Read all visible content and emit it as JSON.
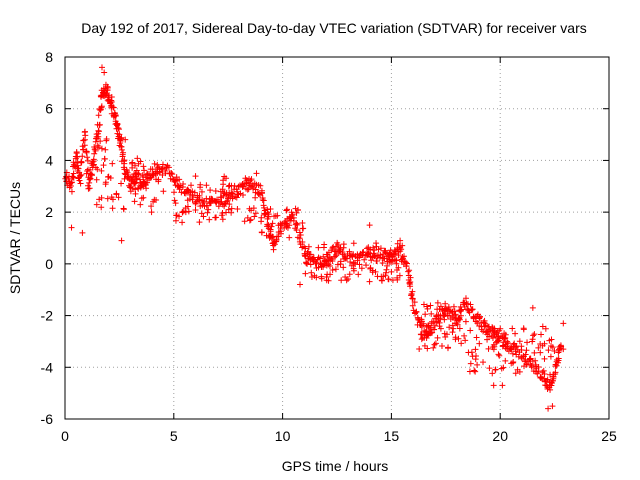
{
  "chart_data": {
    "type": "scatter",
    "title": "Day 192 of 2017, Sidereal Day-to-day VTEC variation (SDTVAR) for receiver vars",
    "xlabel": "GPS time / hours",
    "ylabel": "SDTVAR / TECUs",
    "xlim": [
      0,
      25
    ],
    "ylim": [
      -6,
      8
    ],
    "xticks": [
      "0",
      "5",
      "10",
      "15",
      "20",
      "25"
    ],
    "yticks": [
      "-6",
      "-4",
      "-2",
      "0",
      "2",
      "4",
      "6",
      "8"
    ],
    "grid": true,
    "marker": "plus",
    "series_color": "#ff0000",
    "series": [
      {
        "name": "vars",
        "trend": [
          {
            "x": 0.0,
            "y": 3.4
          },
          {
            "x": 0.3,
            "y": 3.0
          },
          {
            "x": 0.5,
            "y": 4.2
          },
          {
            "x": 0.7,
            "y": 3.2
          },
          {
            "x": 0.9,
            "y": 5.0
          },
          {
            "x": 1.1,
            "y": 3.0
          },
          {
            "x": 1.3,
            "y": 4.0
          },
          {
            "x": 1.5,
            "y": 5.0
          },
          {
            "x": 1.7,
            "y": 6.5
          },
          {
            "x": 1.9,
            "y": 6.8
          },
          {
            "x": 2.1,
            "y": 6.3
          },
          {
            "x": 2.3,
            "y": 5.6
          },
          {
            "x": 2.5,
            "y": 5.0
          },
          {
            "x": 2.7,
            "y": 3.8
          },
          {
            "x": 3.0,
            "y": 3.0
          },
          {
            "x": 3.3,
            "y": 3.4
          },
          {
            "x": 3.6,
            "y": 3.0
          },
          {
            "x": 4.0,
            "y": 3.6
          },
          {
            "x": 4.5,
            "y": 3.8
          },
          {
            "x": 5.0,
            "y": 3.3
          },
          {
            "x": 5.5,
            "y": 2.8
          },
          {
            "x": 6.0,
            "y": 2.5
          },
          {
            "x": 6.5,
            "y": 2.3
          },
          {
            "x": 7.0,
            "y": 2.4
          },
          {
            "x": 7.5,
            "y": 2.6
          },
          {
            "x": 8.0,
            "y": 2.8
          },
          {
            "x": 8.5,
            "y": 3.1
          },
          {
            "x": 9.0,
            "y": 2.8
          },
          {
            "x": 9.3,
            "y": 1.5
          },
          {
            "x": 9.6,
            "y": 0.6
          },
          {
            "x": 10.0,
            "y": 1.6
          },
          {
            "x": 10.5,
            "y": 1.8
          },
          {
            "x": 11.0,
            "y": 0.4
          },
          {
            "x": 11.5,
            "y": 0.0
          },
          {
            "x": 12.0,
            "y": 0.2
          },
          {
            "x": 12.5,
            "y": 0.6
          },
          {
            "x": 13.0,
            "y": 0.3
          },
          {
            "x": 13.5,
            "y": 0.1
          },
          {
            "x": 14.0,
            "y": 0.5
          },
          {
            "x": 14.5,
            "y": 0.4
          },
          {
            "x": 15.0,
            "y": 0.2
          },
          {
            "x": 15.4,
            "y": 0.5
          },
          {
            "x": 15.8,
            "y": -0.3
          },
          {
            "x": 16.0,
            "y": -1.5
          },
          {
            "x": 16.4,
            "y": -2.8
          },
          {
            "x": 16.8,
            "y": -2.5
          },
          {
            "x": 17.2,
            "y": -2.1
          },
          {
            "x": 17.6,
            "y": -1.8
          },
          {
            "x": 18.0,
            "y": -2.2
          },
          {
            "x": 18.4,
            "y": -1.5
          },
          {
            "x": 18.8,
            "y": -2.0
          },
          {
            "x": 19.2,
            "y": -2.4
          },
          {
            "x": 19.6,
            "y": -2.6
          },
          {
            "x": 20.0,
            "y": -3.0
          },
          {
            "x": 20.5,
            "y": -3.2
          },
          {
            "x": 21.0,
            "y": -3.5
          },
          {
            "x": 21.5,
            "y": -3.9
          },
          {
            "x": 22.0,
            "y": -4.4
          },
          {
            "x": 22.3,
            "y": -4.8
          },
          {
            "x": 22.6,
            "y": -4.0
          },
          {
            "x": 22.8,
            "y": -3.0
          }
        ],
        "bands": [
          {
            "x0": 1.4,
            "x1": 2.8,
            "y0": 2.0,
            "y1": 5.0,
            "n": 40
          },
          {
            "x0": 3.0,
            "x1": 4.6,
            "y0": 2.0,
            "y1": 4.2,
            "n": 40
          },
          {
            "x0": 5.0,
            "x1": 8.8,
            "y0": 1.6,
            "y1": 3.4,
            "n": 80
          },
          {
            "x0": 9.0,
            "x1": 11.0,
            "y0": 1.0,
            "y1": 2.2,
            "n": 40
          },
          {
            "x0": 11.0,
            "x1": 15.5,
            "y0": -0.7,
            "y1": 0.8,
            "n": 110
          },
          {
            "x0": 16.2,
            "x1": 18.5,
            "y0": -3.3,
            "y1": -1.4,
            "n": 60
          },
          {
            "x0": 18.5,
            "x1": 22.5,
            "y0": -4.3,
            "y1": -2.4,
            "n": 90
          }
        ],
        "outliers": [
          {
            "x": 1.7,
            "y": 7.6
          },
          {
            "x": 1.8,
            "y": 7.4
          },
          {
            "x": 0.3,
            "y": 1.4
          },
          {
            "x": 0.8,
            "y": 1.2
          },
          {
            "x": 2.6,
            "y": 0.9
          },
          {
            "x": 8.8,
            "y": 3.5
          },
          {
            "x": 14.0,
            "y": 1.5
          },
          {
            "x": 15.4,
            "y": 0.9
          },
          {
            "x": 19.7,
            "y": -4.7
          },
          {
            "x": 20.1,
            "y": -4.7
          },
          {
            "x": 21.5,
            "y": -1.7
          },
          {
            "x": 22.2,
            "y": -5.6
          },
          {
            "x": 22.4,
            "y": -5.5
          },
          {
            "x": 22.9,
            "y": -2.3
          },
          {
            "x": 22.9,
            "y": -3.3
          },
          {
            "x": 10.8,
            "y": -0.8
          }
        ]
      }
    ]
  }
}
